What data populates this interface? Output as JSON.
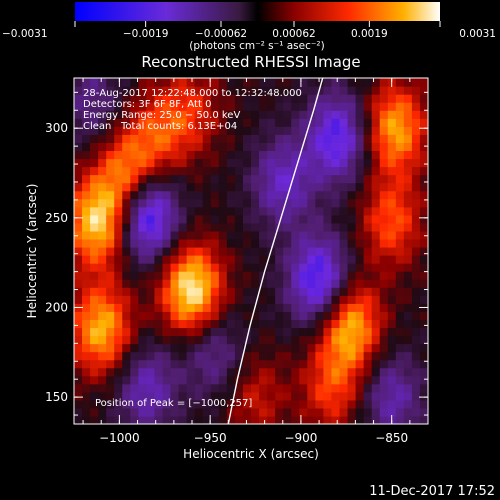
{
  "chart_data": {
    "type": "heatmap",
    "title": "Reconstructed RHESSI Image",
    "xlabel": "Heliocentric X (arcsec)",
    "ylabel": "Heliocentric Y (arcsec)",
    "xlim": [
      -1025,
      -830
    ],
    "ylim": [
      135,
      328
    ],
    "x_ticks": [
      -1000,
      -950,
      -900,
      -850
    ],
    "x_tick_labels": [
      "−1000",
      "−950",
      "−900",
      "−850"
    ],
    "y_ticks": [
      150,
      200,
      250,
      300
    ],
    "y_tick_labels": [
      "150",
      "200",
      "250",
      "300"
    ],
    "colorbar": {
      "range": [
        -0.0031,
        0.0031
      ],
      "ticks": [
        -0.0031,
        -0.0019,
        -0.00062,
        0.00062,
        0.0019,
        0.0031
      ],
      "tick_labels": [
        "−0.0031",
        "−0.0019",
        "−0.00062",
        "0.00062",
        "0.0019",
        "0.0031"
      ],
      "unit_label": "(photons cm⁻² s⁻¹ asec⁻²)"
    },
    "annotations": [
      "28‑Aug‑2017 12:22:48.000 to 12:32:48.000",
      "Detectors: 3F 6F 8F, Att 0",
      "Energy Range: 25.0 − 50.0 keV",
      "Clean",
      "Total counts: 6.13E+04"
    ],
    "peak_label": "Position of Peak = [−1000,257]",
    "limb_curve": [
      [
        -940,
        135
      ],
      [
        -935,
        160
      ],
      [
        -928,
        190
      ],
      [
        -920,
        220
      ],
      [
        -911,
        250
      ],
      [
        -902,
        280
      ],
      [
        -893,
        310
      ],
      [
        -888,
        328
      ]
    ],
    "blobs": [
      {
        "x": -1010,
        "y": 188,
        "v": 0.0024
      },
      {
        "x": -1012,
        "y": 248,
        "v": 0.0027
      },
      {
        "x": -995,
        "y": 275,
        "v": 0.0021
      },
      {
        "x": -960,
        "y": 210,
        "v": 0.003
      },
      {
        "x": -978,
        "y": 298,
        "v": 0.0013
      },
      {
        "x": -960,
        "y": 310,
        "v": 0.0011
      },
      {
        "x": -873,
        "y": 190,
        "v": 0.0025
      },
      {
        "x": -883,
        "y": 155,
        "v": 0.0014
      },
      {
        "x": -848,
        "y": 300,
        "v": 0.0023
      },
      {
        "x": -850,
        "y": 248,
        "v": 0.0016
      },
      {
        "x": -925,
        "y": 150,
        "v": 0.001
      },
      {
        "x": -985,
        "y": 252,
        "v": -0.0028
      },
      {
        "x": -890,
        "y": 215,
        "v": -0.0025
      },
      {
        "x": -880,
        "y": 295,
        "v": -0.0022
      },
      {
        "x": -910,
        "y": 270,
        "v": -0.0016
      },
      {
        "x": -985,
        "y": 155,
        "v": -0.0015
      },
      {
        "x": -948,
        "y": 175,
        "v": -0.0012
      },
      {
        "x": -850,
        "y": 150,
        "v": -0.0014
      },
      {
        "x": -1015,
        "y": 315,
        "v": -0.001
      }
    ]
  },
  "footer": {
    "timestamp": "11‑Dec‑2017 17:52"
  }
}
